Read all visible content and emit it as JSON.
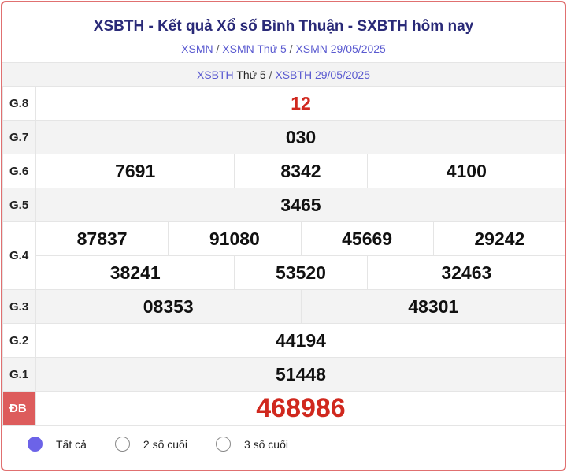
{
  "header": {
    "title": "XSBTH - Kết quả Xổ số Bình Thuận - SXBTH hôm nay",
    "breadcrumb": [
      "XSMN",
      "XSMN Thứ 5",
      "XSMN 29/05/2025"
    ],
    "sub_links": {
      "link1": "XSBTH",
      "plain": "Thứ 5",
      "link2": "XSBTH 29/05/2025"
    }
  },
  "results": {
    "g8": {
      "label": "G.8",
      "values": [
        "12"
      ]
    },
    "g7": {
      "label": "G.7",
      "values": [
        "030"
      ]
    },
    "g6": {
      "label": "G.6",
      "values": [
        "7691",
        "8342",
        "4100"
      ]
    },
    "g5": {
      "label": "G.5",
      "values": [
        "3465"
      ]
    },
    "g4": {
      "label": "G.4",
      "values": [
        "87837",
        "91080",
        "45669",
        "29242",
        "38241",
        "53520",
        "32463"
      ]
    },
    "g3": {
      "label": "G.3",
      "values": [
        "08353",
        "48301"
      ]
    },
    "g2": {
      "label": "G.2",
      "values": [
        "44194"
      ]
    },
    "g1": {
      "label": "G.1",
      "values": [
        "51448"
      ]
    },
    "db": {
      "label": "ĐB",
      "values": [
        "468986"
      ]
    }
  },
  "filter": {
    "options": [
      "Tất cả",
      "2 số cuối",
      "3 số cuối"
    ],
    "selected": "Tất cả"
  },
  "colors": {
    "accent": "#6c63e8",
    "prize": "#d0281e",
    "border": "#e07070"
  }
}
